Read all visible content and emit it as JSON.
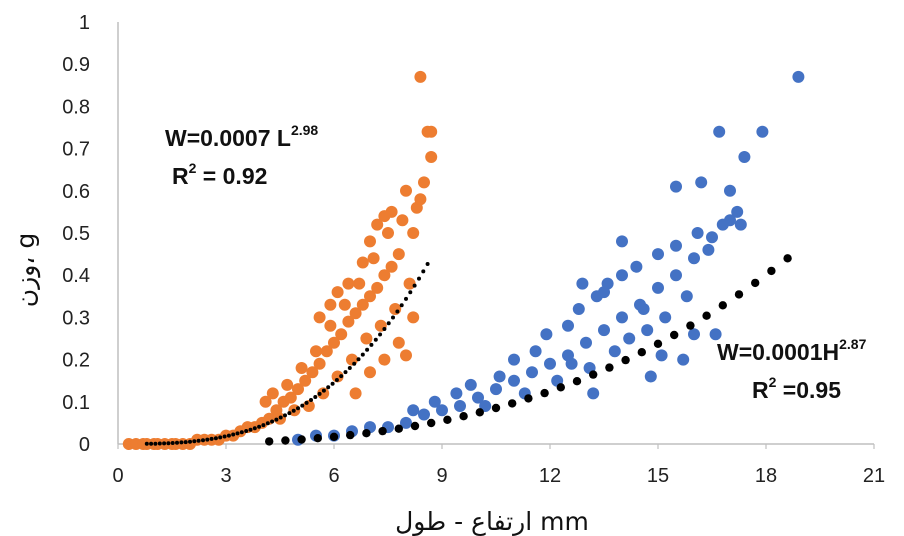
{
  "chart_data": {
    "type": "scatter",
    "xlabel": "ارتفاع - طول mm",
    "ylabel": "وزن، g",
    "xlim": [
      0,
      21
    ],
    "ylim": [
      0,
      1
    ],
    "xticks": [
      "0",
      "3",
      "6",
      "9",
      "12",
      "15",
      "18",
      "21"
    ],
    "yticks": [
      "0",
      "0.1",
      "0.2",
      "0.3",
      "0.4",
      "0.5",
      "0.6",
      "0.7",
      "0.8",
      "0.9",
      "1"
    ],
    "grid": false,
    "colors": {
      "length": "#ed7d31",
      "height": "#4472c4",
      "trend": "#000000"
    },
    "annotations": [
      {
        "eq_prefix": "W=0.0007 L",
        "exponent": "2.98",
        "r2_prefix": "R",
        "r2_exp": "2",
        "r2_suffix": " = 0.92"
      },
      {
        "eq_prefix": "W=0.0001H",
        "exponent": "2.87",
        "r2_prefix": "R",
        "r2_exp": "2",
        "r2_suffix": " =0.95"
      }
    ],
    "series": [
      {
        "key": "length",
        "trend": {
          "a": 0.0007,
          "b": 2.98,
          "x_from": 0.8,
          "x_to": 8.6
        },
        "points": [
          [
            0.3,
            0.0
          ],
          [
            0.5,
            0.0
          ],
          [
            0.7,
            0.0
          ],
          [
            0.8,
            0.0
          ],
          [
            1.0,
            0.0
          ],
          [
            1.1,
            0.0
          ],
          [
            1.3,
            0.0
          ],
          [
            1.5,
            0.0
          ],
          [
            1.6,
            0.0
          ],
          [
            1.8,
            0.0
          ],
          [
            2.0,
            0.0
          ],
          [
            2.2,
            0.01
          ],
          [
            2.4,
            0.01
          ],
          [
            2.6,
            0.01
          ],
          [
            2.8,
            0.01
          ],
          [
            3.0,
            0.02
          ],
          [
            3.2,
            0.02
          ],
          [
            3.4,
            0.03
          ],
          [
            3.6,
            0.04
          ],
          [
            3.8,
            0.04
          ],
          [
            4.0,
            0.05
          ],
          [
            4.2,
            0.06
          ],
          [
            4.4,
            0.08
          ],
          [
            4.6,
            0.1
          ],
          [
            4.8,
            0.11
          ],
          [
            5.0,
            0.13
          ],
          [
            5.2,
            0.15
          ],
          [
            5.4,
            0.17
          ],
          [
            5.6,
            0.19
          ],
          [
            5.8,
            0.22
          ],
          [
            6.0,
            0.24
          ],
          [
            6.2,
            0.26
          ],
          [
            6.4,
            0.29
          ],
          [
            6.6,
            0.31
          ],
          [
            6.8,
            0.33
          ],
          [
            7.0,
            0.35
          ],
          [
            7.2,
            0.37
          ],
          [
            7.4,
            0.4
          ],
          [
            7.6,
            0.42
          ],
          [
            7.8,
            0.45
          ],
          [
            4.1,
            0.1
          ],
          [
            4.3,
            0.12
          ],
          [
            4.5,
            0.06
          ],
          [
            4.7,
            0.14
          ],
          [
            4.9,
            0.08
          ],
          [
            5.1,
            0.18
          ],
          [
            5.3,
            0.09
          ],
          [
            5.5,
            0.22
          ],
          [
            5.7,
            0.12
          ],
          [
            5.9,
            0.28
          ],
          [
            6.1,
            0.16
          ],
          [
            6.3,
            0.33
          ],
          [
            6.5,
            0.2
          ],
          [
            6.7,
            0.38
          ],
          [
            6.9,
            0.25
          ],
          [
            7.1,
            0.44
          ],
          [
            7.3,
            0.28
          ],
          [
            7.5,
            0.5
          ],
          [
            7.7,
            0.32
          ],
          [
            7.9,
            0.53
          ],
          [
            8.1,
            0.38
          ],
          [
            8.3,
            0.56
          ],
          [
            8.5,
            0.62
          ],
          [
            5.6,
            0.3
          ],
          [
            5.9,
            0.33
          ],
          [
            6.1,
            0.36
          ],
          [
            6.4,
            0.38
          ],
          [
            6.8,
            0.43
          ],
          [
            7.0,
            0.48
          ],
          [
            7.2,
            0.52
          ],
          [
            7.6,
            0.55
          ],
          [
            7.4,
            0.54
          ],
          [
            8.0,
            0.6
          ],
          [
            8.2,
            0.5
          ],
          [
            8.4,
            0.58
          ],
          [
            7.0,
            0.17
          ],
          [
            7.4,
            0.2
          ],
          [
            7.8,
            0.24
          ],
          [
            8.0,
            0.21
          ],
          [
            8.2,
            0.3
          ],
          [
            6.6,
            0.12
          ],
          [
            8.4,
            0.87
          ],
          [
            8.6,
            0.74
          ],
          [
            8.7,
            0.74
          ],
          [
            8.7,
            0.68
          ]
        ]
      },
      {
        "key": "height",
        "trend": {
          "a": 0.0001,
          "b": 2.87,
          "x_from": 4.2,
          "x_to": 19.0
        },
        "points": [
          [
            5.0,
            0.01
          ],
          [
            5.5,
            0.02
          ],
          [
            6.0,
            0.02
          ],
          [
            6.5,
            0.03
          ],
          [
            7.0,
            0.04
          ],
          [
            7.5,
            0.04
          ],
          [
            8.0,
            0.05
          ],
          [
            8.5,
            0.07
          ],
          [
            9.0,
            0.08
          ],
          [
            9.5,
            0.09
          ],
          [
            10.0,
            0.11
          ],
          [
            10.5,
            0.13
          ],
          [
            11.0,
            0.15
          ],
          [
            11.5,
            0.17
          ],
          [
            12.0,
            0.19
          ],
          [
            12.5,
            0.21
          ],
          [
            13.0,
            0.24
          ],
          [
            13.5,
            0.27
          ],
          [
            14.0,
            0.3
          ],
          [
            14.5,
            0.33
          ],
          [
            15.0,
            0.37
          ],
          [
            15.5,
            0.4
          ],
          [
            16.0,
            0.44
          ],
          [
            16.5,
            0.49
          ],
          [
            17.0,
            0.53
          ],
          [
            8.2,
            0.08
          ],
          [
            8.8,
            0.1
          ],
          [
            9.4,
            0.12
          ],
          [
            9.8,
            0.14
          ],
          [
            10.2,
            0.09
          ],
          [
            10.6,
            0.16
          ],
          [
            11.0,
            0.2
          ],
          [
            11.3,
            0.12
          ],
          [
            11.6,
            0.22
          ],
          [
            11.9,
            0.26
          ],
          [
            12.2,
            0.15
          ],
          [
            12.5,
            0.28
          ],
          [
            12.8,
            0.32
          ],
          [
            13.1,
            0.18
          ],
          [
            13.3,
            0.35
          ],
          [
            13.6,
            0.38
          ],
          [
            13.8,
            0.22
          ],
          [
            14.0,
            0.4
          ],
          [
            14.2,
            0.25
          ],
          [
            14.4,
            0.42
          ],
          [
            14.7,
            0.27
          ],
          [
            15.0,
            0.45
          ],
          [
            15.2,
            0.3
          ],
          [
            15.5,
            0.47
          ],
          [
            15.8,
            0.35
          ],
          [
            16.1,
            0.5
          ],
          [
            16.4,
            0.46
          ],
          [
            16.8,
            0.52
          ],
          [
            17.2,
            0.55
          ],
          [
            12.9,
            0.38
          ],
          [
            13.5,
            0.36
          ],
          [
            14.0,
            0.48
          ],
          [
            14.6,
            0.32
          ],
          [
            15.1,
            0.21
          ],
          [
            15.5,
            0.61
          ],
          [
            15.7,
            0.2
          ],
          [
            16.0,
            0.26
          ],
          [
            16.2,
            0.62
          ],
          [
            16.6,
            0.26
          ],
          [
            17.0,
            0.6
          ],
          [
            17.3,
            0.52
          ],
          [
            14.8,
            0.16
          ],
          [
            13.2,
            0.12
          ],
          [
            12.6,
            0.19
          ],
          [
            16.7,
            0.74
          ],
          [
            17.9,
            0.74
          ],
          [
            17.4,
            0.68
          ],
          [
            18.9,
            0.87
          ]
        ]
      }
    ]
  }
}
